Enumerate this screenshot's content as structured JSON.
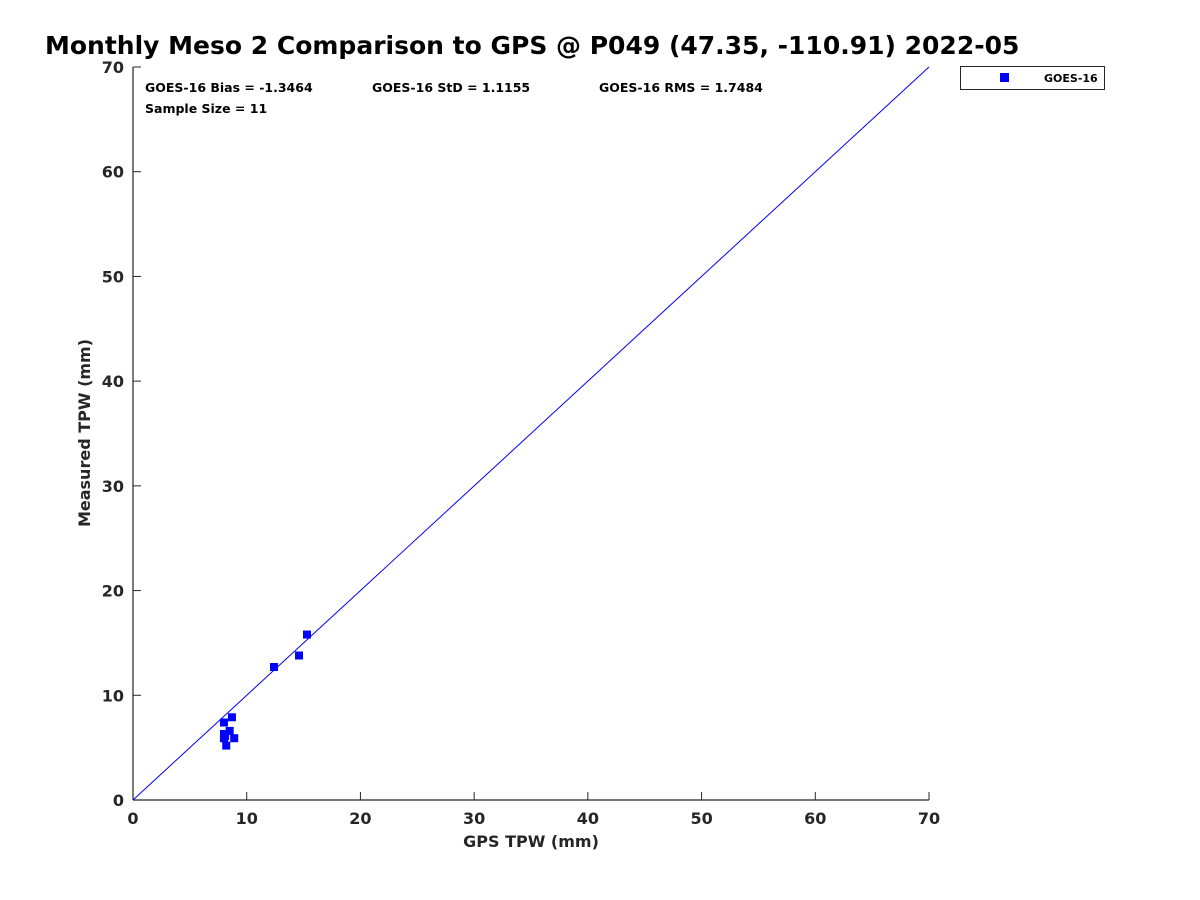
{
  "chart_data": {
    "type": "scatter",
    "title": "Monthly Meso 2 Comparison to GPS @ P049 (47.35, -110.91) 2022-05",
    "xlabel": "GPS TPW (mm)",
    "ylabel": "Measured TPW (mm)",
    "xlim": [
      0,
      70
    ],
    "ylim": [
      0,
      70
    ],
    "xticks": [
      "0",
      "10",
      "20",
      "30",
      "40",
      "50",
      "60",
      "70"
    ],
    "yticks": [
      "0",
      "10",
      "20",
      "30",
      "40",
      "50",
      "60",
      "70"
    ],
    "grid": false,
    "legend_position": "outside-top-right",
    "reference_line": {
      "from": [
        0,
        0
      ],
      "to": [
        70,
        70
      ],
      "color": "#0000ff"
    },
    "annotations": {
      "bias": "GOES-16 Bias = -1.3464",
      "std": "GOES-16 StD = 1.1155",
      "rms": "GOES-16 RMS = 1.7484",
      "sample_size": "Sample Size = 11"
    },
    "series": [
      {
        "name": "GOES-16",
        "color": "#0000ff",
        "marker": "square",
        "points": [
          {
            "x": 8.0,
            "y": 7.4
          },
          {
            "x": 8.7,
            "y": 7.9
          },
          {
            "x": 8.0,
            "y": 6.3
          },
          {
            "x": 8.0,
            "y": 5.9
          },
          {
            "x": 8.5,
            "y": 6.6
          },
          {
            "x": 8.9,
            "y": 5.9
          },
          {
            "x": 8.2,
            "y": 5.2
          },
          {
            "x": 12.4,
            "y": 12.7
          },
          {
            "x": 14.6,
            "y": 13.8
          },
          {
            "x": 15.3,
            "y": 15.8
          },
          {
            "x": 8.1,
            "y": 6.1
          }
        ]
      }
    ]
  }
}
